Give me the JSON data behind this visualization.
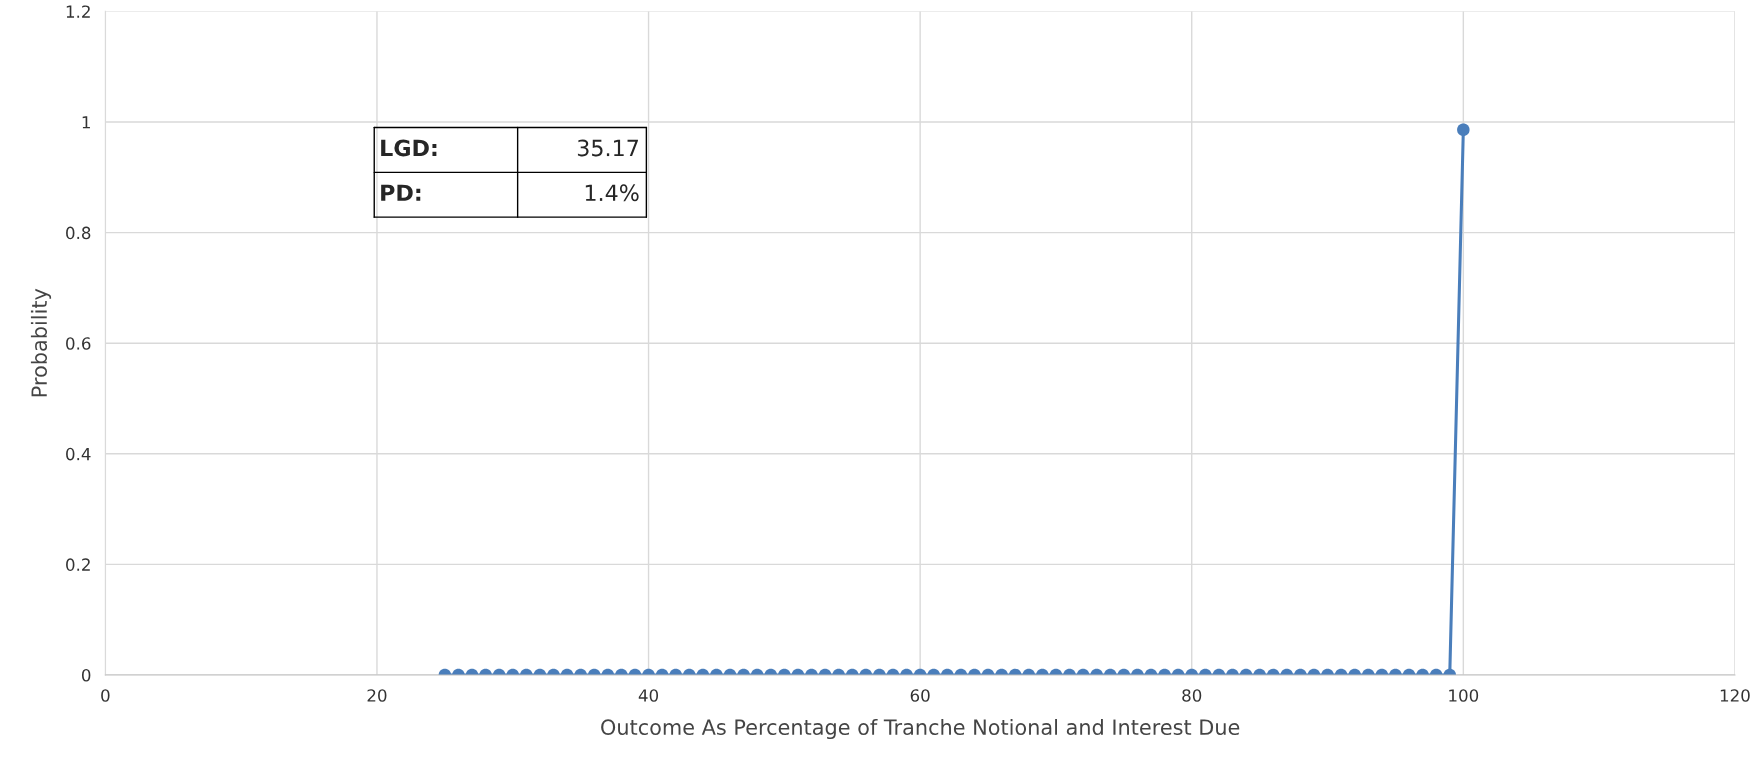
{
  "chart_data": {
    "type": "line",
    "xlabel": "Outcome As Percentage of Tranche Notional and Interest Due",
    "ylabel": "Probability",
    "x": [
      25,
      26,
      27,
      28,
      29,
      30,
      31,
      32,
      33,
      34,
      35,
      36,
      37,
      38,
      39,
      40,
      41,
      42,
      43,
      44,
      45,
      46,
      47,
      48,
      49,
      50,
      51,
      52,
      53,
      54,
      55,
      56,
      57,
      58,
      59,
      60,
      61,
      62,
      63,
      64,
      65,
      66,
      67,
      68,
      69,
      70,
      71,
      72,
      73,
      74,
      75,
      76,
      77,
      78,
      79,
      80,
      81,
      82,
      83,
      84,
      85,
      86,
      87,
      88,
      89,
      90,
      91,
      92,
      93,
      94,
      95,
      96,
      97,
      98,
      99,
      100
    ],
    "series": [
      {
        "color": "#4a7ebb",
        "values": [
          0,
          0,
          0,
          0,
          0,
          0,
          0,
          0,
          0,
          0,
          0,
          0,
          0,
          0,
          0,
          0,
          0,
          0,
          0,
          0,
          0,
          0,
          0,
          0,
          0,
          0,
          0,
          0,
          0,
          0,
          0,
          0,
          0,
          0,
          0,
          0,
          0,
          0,
          0,
          0,
          0,
          0,
          0,
          0,
          0,
          0,
          0,
          0,
          0,
          0,
          0,
          0,
          0,
          0,
          0,
          0,
          0,
          0,
          0,
          0,
          0,
          0,
          0,
          0,
          0,
          0,
          0,
          0,
          0,
          0,
          0,
          0,
          0,
          0,
          0,
          0.986
        ]
      }
    ],
    "xlim": [
      0,
      120
    ],
    "xticks": [
      0,
      20,
      40,
      60,
      80,
      100,
      120
    ],
    "ylim": [
      0,
      1.2
    ],
    "yticks": [
      0,
      0.2,
      0.4,
      0.6,
      0.8,
      1,
      1.2
    ],
    "grid": true,
    "marker": "circle",
    "line_style": "solid",
    "legend": false,
    "annotations": [
      "LGD:",
      "35.17",
      "PD:",
      "1.4%"
    ]
  }
}
